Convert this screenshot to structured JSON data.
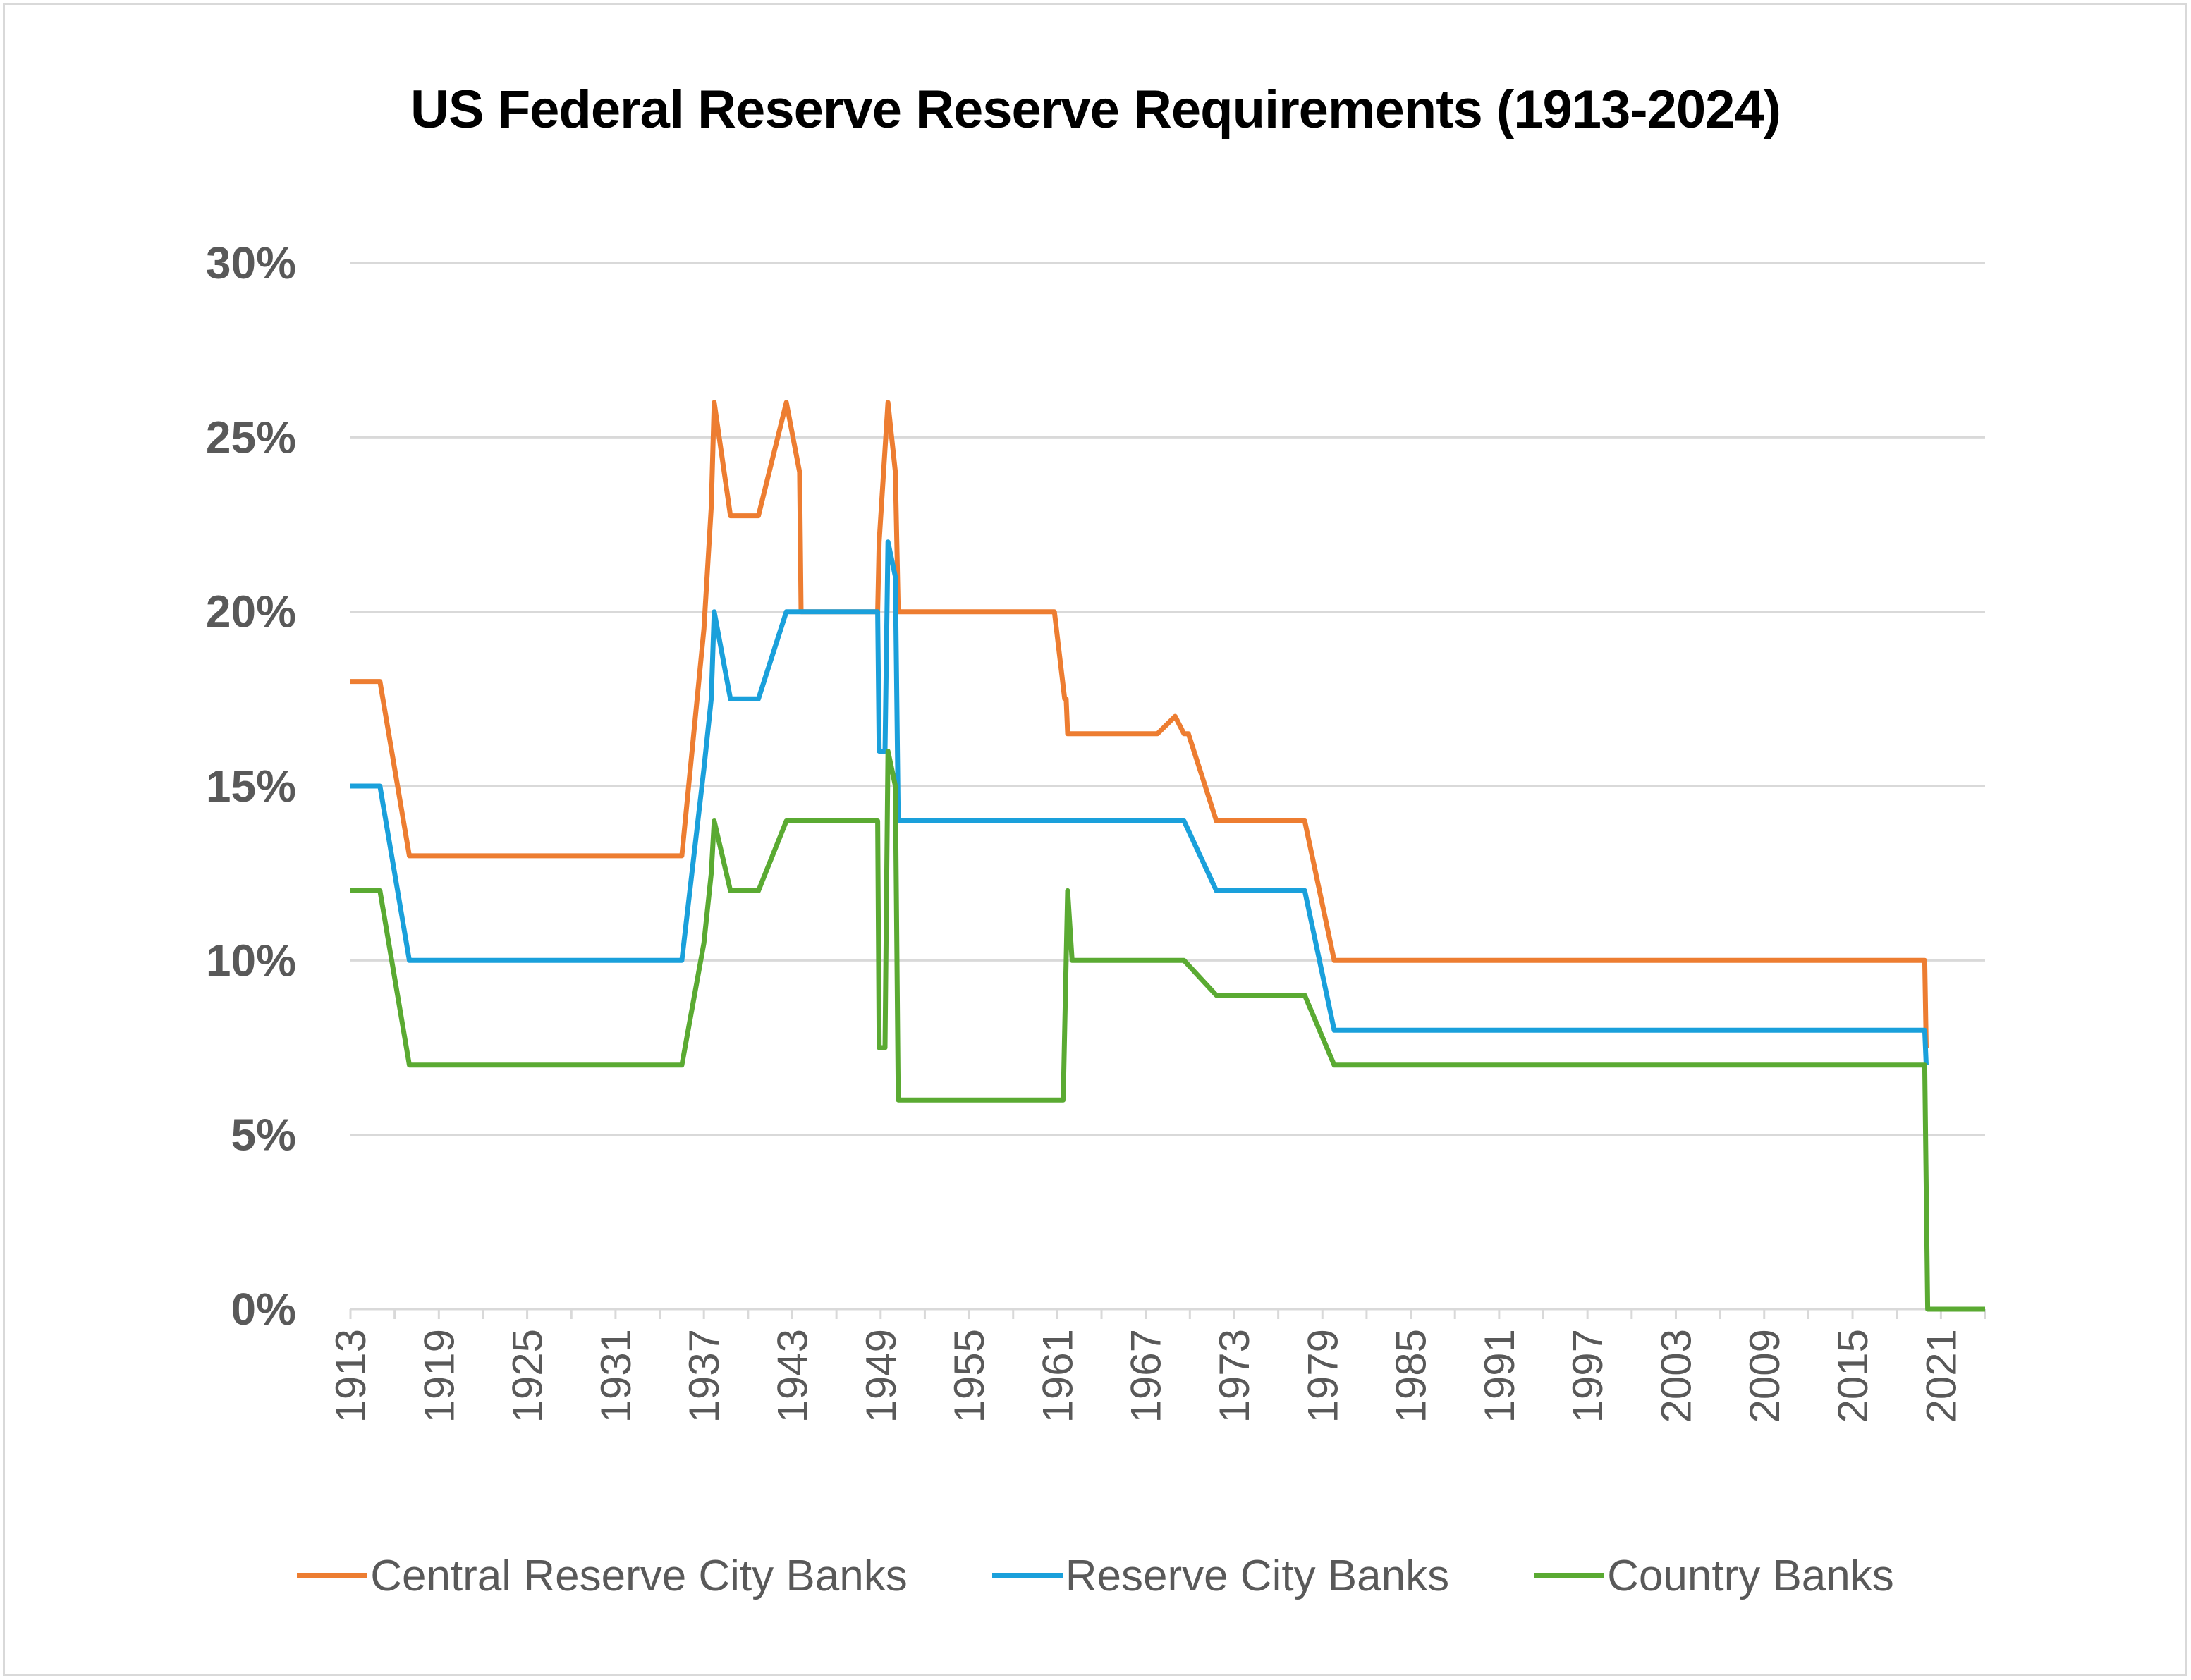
{
  "chart_data": {
    "type": "line",
    "title": "US Federal Reserve Reserve Requirements (1913-2024)",
    "xlabel": "",
    "ylabel": "",
    "xlim": [
      1913,
      2024
    ],
    "ylim": [
      0,
      0.3
    ],
    "y_ticks": [
      0,
      0.05,
      0.1,
      0.15,
      0.2,
      0.25,
      0.3
    ],
    "y_tick_labels": [
      "0%",
      "5%",
      "10%",
      "15%",
      "20%",
      "25%",
      "30%"
    ],
    "x_ticks": [
      1913,
      1919,
      1925,
      1931,
      1937,
      1943,
      1949,
      1955,
      1961,
      1967,
      1973,
      1979,
      1985,
      1991,
      1997,
      2003,
      2009,
      2015,
      2021
    ],
    "x_tick_labels": [
      "1913",
      "1919",
      "1925",
      "1931",
      "1937",
      "1943",
      "1949",
      "1955",
      "1961",
      "1967",
      "1973",
      "1979",
      "1985",
      "1991",
      "1997",
      "2003",
      "2009",
      "2015",
      "2021"
    ],
    "grid": "horizontal",
    "legend_position": "bottom",
    "series": [
      {
        "name": "Central Reserve City Banks",
        "color": "#ED7D31",
        "points": [
          [
            1913,
            0.18
          ],
          [
            1915,
            0.18
          ],
          [
            1917,
            0.13
          ],
          [
            1935.5,
            0.13
          ],
          [
            1937,
            0.195
          ],
          [
            1937.5,
            0.23
          ],
          [
            1937.7,
            0.26
          ],
          [
            1938.8,
            0.2275
          ],
          [
            1940.7,
            0.2275
          ],
          [
            1942.6,
            0.26
          ],
          [
            1943.5,
            0.24
          ],
          [
            1943.6,
            0.2
          ],
          [
            1948.8,
            0.2
          ],
          [
            1948.9,
            0.22
          ],
          [
            1949.5,
            0.26
          ],
          [
            1950.0,
            0.24
          ],
          [
            1950.2,
            0.2
          ],
          [
            1960.8,
            0.2
          ],
          [
            1961.5,
            0.175
          ],
          [
            1961.6,
            0.175
          ],
          [
            1961.7,
            0.165
          ],
          [
            1967.8,
            0.165
          ],
          [
            1969.0,
            0.17
          ],
          [
            1969.6,
            0.165
          ],
          [
            1969.9,
            0.165
          ],
          [
            1971.8,
            0.14
          ],
          [
            1977.8,
            0.14
          ],
          [
            1979.8,
            0.1
          ],
          [
            2019.9,
            0.1
          ],
          [
            2020.0,
            0.075
          ]
        ]
      },
      {
        "name": "Reserve City Banks",
        "color": "#1AA0DB",
        "points": [
          [
            1913,
            0.15
          ],
          [
            1915,
            0.15
          ],
          [
            1917,
            0.1
          ],
          [
            1935.5,
            0.1
          ],
          [
            1937,
            0.155
          ],
          [
            1937.5,
            0.175
          ],
          [
            1937.7,
            0.2
          ],
          [
            1938.8,
            0.175
          ],
          [
            1940.7,
            0.175
          ],
          [
            1942.6,
            0.2
          ],
          [
            1948.8,
            0.2
          ],
          [
            1948.9,
            0.16
          ],
          [
            1949.3,
            0.16
          ],
          [
            1949.5,
            0.22
          ],
          [
            1950.0,
            0.21
          ],
          [
            1950.2,
            0.14
          ],
          [
            1969.6,
            0.14
          ],
          [
            1971.8,
            0.12
          ],
          [
            1977.8,
            0.12
          ],
          [
            1979.8,
            0.08
          ],
          [
            2019.9,
            0.08
          ],
          [
            2020.0,
            0.07
          ]
        ]
      },
      {
        "name": "Country Banks",
        "color": "#5AAA32",
        "points": [
          [
            1913,
            0.12
          ],
          [
            1915,
            0.12
          ],
          [
            1917,
            0.07
          ],
          [
            1935.5,
            0.07
          ],
          [
            1937,
            0.105
          ],
          [
            1937.5,
            0.125
          ],
          [
            1937.7,
            0.14
          ],
          [
            1938.8,
            0.12
          ],
          [
            1940.7,
            0.12
          ],
          [
            1942.6,
            0.14
          ],
          [
            1948.8,
            0.14
          ],
          [
            1948.9,
            0.075
          ],
          [
            1949.3,
            0.075
          ],
          [
            1949.5,
            0.16
          ],
          [
            1950.0,
            0.15
          ],
          [
            1950.2,
            0.06
          ],
          [
            1961.4,
            0.06
          ],
          [
            1961.7,
            0.12
          ],
          [
            1962.0,
            0.1
          ],
          [
            1969.6,
            0.1
          ],
          [
            1971.8,
            0.09
          ],
          [
            1977.8,
            0.09
          ],
          [
            1979.8,
            0.07
          ],
          [
            2019.9,
            0.07
          ],
          [
            2020.1,
            0.0
          ],
          [
            2024,
            0.0
          ]
        ]
      }
    ]
  }
}
